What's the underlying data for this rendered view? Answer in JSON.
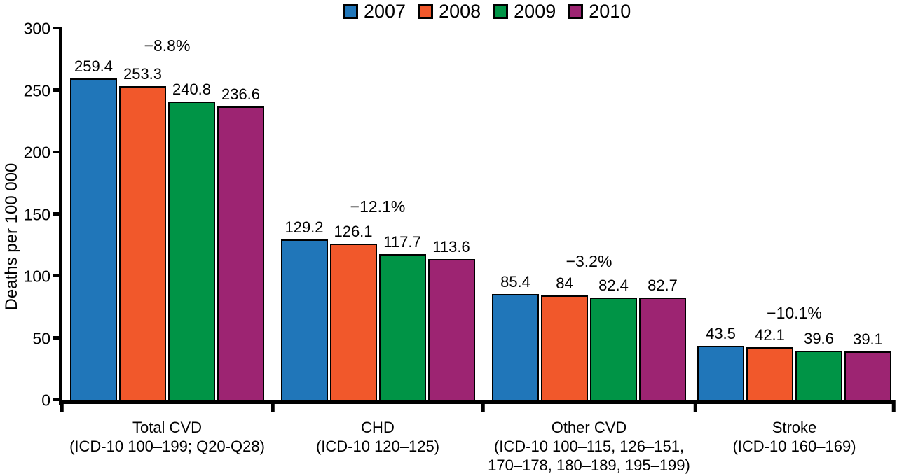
{
  "chart_data": {
    "type": "bar",
    "title": "",
    "ylabel": "Deaths per 100 000",
    "ylim": [
      0,
      300
    ],
    "yticks": [
      0,
      50,
      100,
      150,
      200,
      250,
      300
    ],
    "grid": false,
    "legend_position": "top-center",
    "series": [
      {
        "name": "2007",
        "color": "#2076B9",
        "values": [
          259.4,
          129.2,
          85.4,
          43.5
        ]
      },
      {
        "name": "2008",
        "color": "#F1582B",
        "values": [
          253.3,
          126.1,
          84,
          42.1
        ]
      },
      {
        "name": "2009",
        "color": "#009446",
        "values": [
          240.8,
          117.7,
          82.4,
          39.6
        ]
      },
      {
        "name": "2010",
        "color": "#9D2472",
        "values": [
          236.6,
          113.6,
          82.7,
          39.1
        ]
      }
    ],
    "categories": [
      {
        "lines": [
          "Total CVD",
          "(ICD-10 100–199; Q20-Q28)"
        ],
        "pct_change": "−8.8%"
      },
      {
        "lines": [
          "CHD",
          "(ICD-10 120–125)"
        ],
        "pct_change": "−12.1%"
      },
      {
        "lines": [
          "Other CVD",
          "(ICD-10 100–115, 126–151,",
          "170–178, 180–189, 195–199)"
        ],
        "pct_change": "−3.2%"
      },
      {
        "lines": [
          "Stroke",
          "(ICD-10 160–169)"
        ],
        "pct_change": "−10.1%"
      }
    ],
    "axis_color": "#000000",
    "bar_border_color": "#000000"
  }
}
